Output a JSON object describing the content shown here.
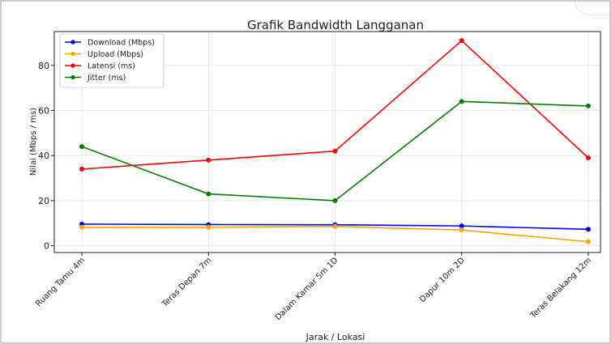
{
  "chart_data": {
    "type": "line",
    "title": "Grafik Bandwidth Langganan",
    "xlabel": "Jarak / Lokasi",
    "ylabel": "Nilai (Mbps / ms)",
    "categories": [
      "Ruang Tamu 4m",
      "Teras Depan 7m",
      "Dalam Kamar 5m 1D",
      "Dapur 10m 2D",
      "Teras Belakang 12m"
    ],
    "ylim": [
      -3,
      95
    ],
    "yticks": [
      0,
      20,
      40,
      60,
      80
    ],
    "grid": true,
    "legend_position": "top-left",
    "series": [
      {
        "name": "Download (Mbps)",
        "color": "#0000ff",
        "values": [
          9.6,
          9.4,
          9.3,
          8.8,
          7.3
        ]
      },
      {
        "name": "Upload (Mbps)",
        "color": "#ffa500",
        "values": [
          8.2,
          8.2,
          8.6,
          7.0,
          1.8
        ]
      },
      {
        "name": "Latensi (ms)",
        "color": "#ff0000",
        "values": [
          34,
          38,
          42,
          91,
          39
        ]
      },
      {
        "name": "Jitter (ms)",
        "color": "#008000",
        "values": [
          44,
          23,
          20,
          64,
          62
        ]
      }
    ]
  }
}
